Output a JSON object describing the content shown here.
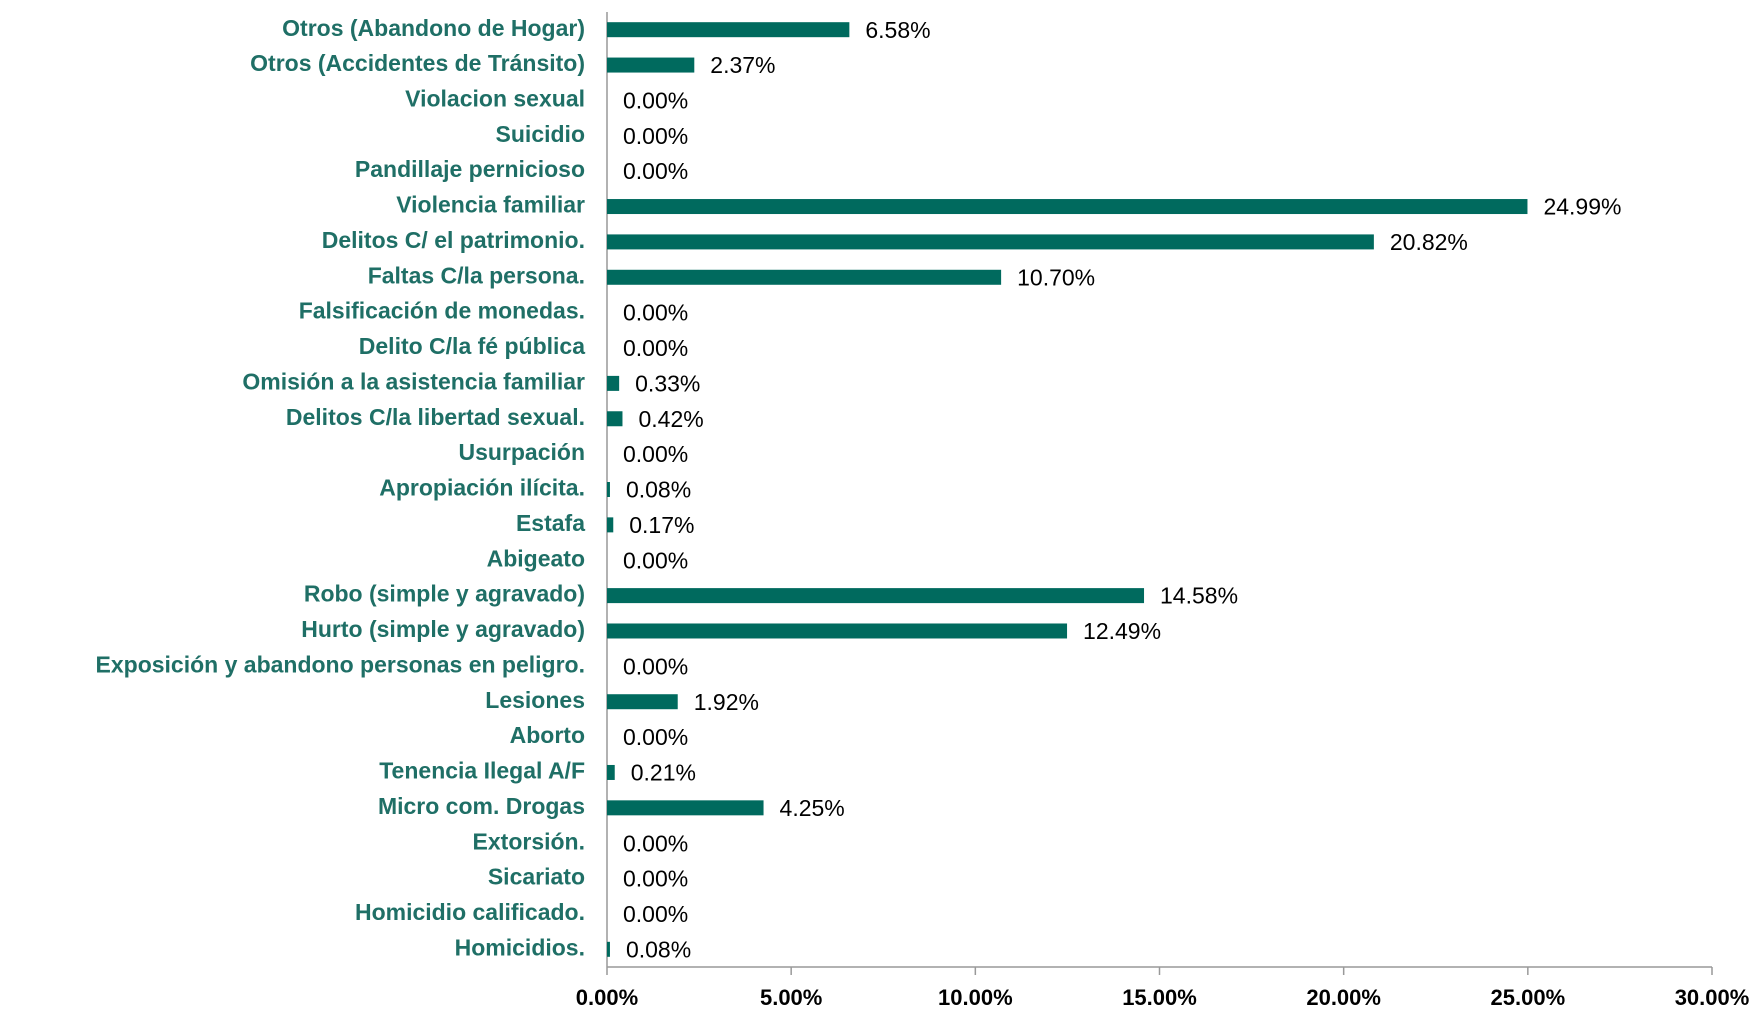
{
  "chart_data": {
    "type": "bar",
    "orientation": "horizontal",
    "color": "#006a5e",
    "categories": [
      "Otros (Abandono de Hogar)",
      "Otros (Accidentes de Tránsito)",
      "Violacion sexual ",
      "Suicidio",
      "Pandillaje pernicioso",
      "Violencia familiar",
      "Delitos C/ el patrimonio.",
      "Faltas C/la persona.",
      "Falsificación de monedas.",
      "Delito C/la fé pública",
      "Omisión a la asistencia familiar",
      "Delitos C/la libertad sexual.",
      "Usurpación",
      "Apropiación ilícita.",
      "Estafa",
      "Abigeato",
      "Robo (simple y agravado)",
      "Hurto (simple y agravado)",
      "Exposición y abandono personas en peligro.",
      "Lesiones",
      "Aborto",
      "Tenencia Ilegal A/F",
      "Micro com. Drogas",
      "Extorsión.",
      "Sicariato",
      "Homicidio calificado.",
      "Homicidios."
    ],
    "values": [
      6.58,
      2.37,
      0,
      0,
      0,
      24.99,
      20.82,
      10.7,
      0,
      0,
      0.33,
      0.42,
      0,
      0.08,
      0.17,
      0,
      14.58,
      12.49,
      0,
      1.92,
      0,
      0.21,
      4.25,
      0,
      0,
      0,
      0.08
    ],
    "value_labels": [
      "6.58%",
      "2.37%",
      "0.00%",
      "0.00%",
      "0.00%",
      "24.99%",
      "20.82%",
      "10.70%",
      "0.00%",
      "0.00%",
      "0.33%",
      "0.42%",
      "0.00%",
      "0.08%",
      "0.17%",
      "0.00%",
      "14.58%",
      "12.49%",
      "0.00%",
      "1.92%",
      "0.00%",
      "0.21%",
      "4.25%",
      "0.00%",
      "0.00%",
      "0.00%",
      "0.08%"
    ],
    "xlim": [
      0,
      30
    ],
    "xticks": [
      {
        "value": 0,
        "label": "0.00%"
      },
      {
        "value": 5,
        "label": "5.00%"
      },
      {
        "value": 10,
        "label": "10.00%"
      },
      {
        "value": 15,
        "label": "15.00%"
      },
      {
        "value": 20,
        "label": "20.00%"
      },
      {
        "value": 25,
        "label": "25.00%"
      },
      {
        "value": 30,
        "label": "30.00%"
      }
    ]
  }
}
